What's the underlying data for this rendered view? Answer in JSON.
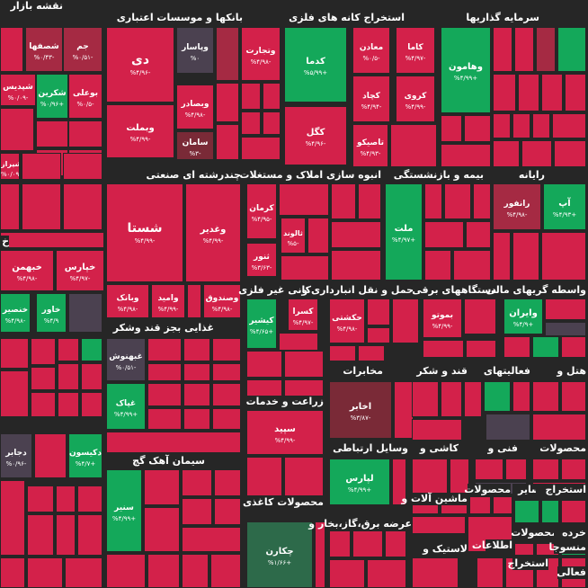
{
  "title": "نقشه بازار",
  "colors": {
    "bg": "#262626",
    "red": "#d3214a",
    "darkred": "#a52a43",
    "deepred": "#7a2a37",
    "green": "#14a85a",
    "darkgreen": "#2d6a4a",
    "gray": "#4b4150"
  },
  "sectors": [
    "بانکها و موسسات اعتباری",
    "استخراج کانه های فلزی",
    "سرمایه گذاریها",
    "چندرشته ای صنعتی",
    "انبوه سازی املاک و مستغلات",
    "بیمه و بازنشستگی",
    "رایانه",
    "غذایی بجز قند وشکر",
    "کانی غیر فلزی",
    "حمل و نقل انبارداری و",
    "دستگاههای برقی",
    "واسطه گریهای مالی",
    "مخابرات",
    "قند و شکر",
    "فعالیتهای",
    "هتل و",
    "زراعت و خدمات",
    "وسایل ارتباطی",
    "کاشی و",
    "فنی و",
    "محصولات",
    "سیمان آهک گچ",
    "محصولات کاغذی",
    "ماشین آلات و",
    "محصولات",
    "سایر",
    "استخراج",
    "عرضه برق،گاز،بخار و",
    "اطلاعات",
    "لاستیک و",
    "محصولات",
    "خرده",
    "استخراج",
    "منسوجا",
    "فعالی",
    "خ"
  ],
  "symbols": [
    {
      "name": "جم",
      "pct": "%۰/۵۱-"
    },
    {
      "name": "شصفها",
      "pct": "%۰/۴۳-"
    },
    {
      "name": "شکرین",
      "pct": "%۰/۹۶+"
    },
    {
      "name": "شپدیس",
      "pct": "%۰/۰۹-"
    },
    {
      "name": "بوعلی",
      "pct": "%۰/۵-"
    },
    {
      "name": "شیراز",
      "pct": "%۰/۰۹-"
    },
    {
      "name": "دی",
      "pct": "%۴/۹۶-"
    },
    {
      "name": "وپاسار",
      "pct": "%۰"
    },
    {
      "name": "وتجارت",
      "pct": "%۴/۹۸-"
    },
    {
      "name": "وبملت",
      "pct": "%۴/۹۹-"
    },
    {
      "name": "وبصادر",
      "pct": "%۴/۹۸-"
    },
    {
      "name": "سامان",
      "pct": "%۳-"
    },
    {
      "name": "معادن",
      "pct": "%۰/۵-"
    },
    {
      "name": "کاما",
      "pct": "%۴/۹۷-"
    },
    {
      "name": "کدما",
      "pct": "%۵/۹۹+"
    },
    {
      "name": "کروی",
      "pct": "%۴/۹۹-"
    },
    {
      "name": "کچاد",
      "pct": "%۴/۹۴-"
    },
    {
      "name": "کگل",
      "pct": "%۴/۹۶-"
    },
    {
      "name": "تاصیکو",
      "pct": "%۴/۹۳-"
    },
    {
      "name": "وهامون",
      "pct": "%۴/۹۹+"
    },
    {
      "name": "شستا",
      "pct": "%۴/۹۹-"
    },
    {
      "name": "وغدیر",
      "pct": "%۴/۹۹-"
    },
    {
      "name": "وبانک",
      "pct": "%۴/۹۸-"
    },
    {
      "name": "وامید",
      "pct": "%۴/۹۹-"
    },
    {
      "name": "وصندوق",
      "pct": "%۴/۹۸-"
    },
    {
      "name": "کرمان",
      "pct": "%۴/۹۵-"
    },
    {
      "name": "ثالوند",
      "pct": "%۵-"
    },
    {
      "name": "ثنور",
      "pct": "%۳/۶۳-"
    },
    {
      "name": "ملت",
      "pct": "%۴/۹۷+"
    },
    {
      "name": "رانفور",
      "pct": "%۴/۹۸-"
    },
    {
      "name": "آپ",
      "pct": "%۴/۹۳+"
    },
    {
      "name": "خپارس",
      "pct": "%۴/۹۷-"
    },
    {
      "name": "خبهمن",
      "pct": "%۴/۹۸-"
    },
    {
      "name": "خنصیر",
      "pct": "%۴/۹۸-"
    },
    {
      "name": "خاور",
      "pct": "%۴/۹"
    },
    {
      "name": "کیشیر",
      "pct": "%۴/۶۵+"
    },
    {
      "name": "کسرا",
      "pct": "%۴/۹۷-"
    },
    {
      "name": "حکشتی",
      "pct": "%۴/۹۸-"
    },
    {
      "name": "بموتو",
      "pct": "%۴/۹۹-"
    },
    {
      "name": "وایران",
      "pct": "%۴/۹+"
    },
    {
      "name": "غبهنوش",
      "pct": "%۰/۵۱-"
    },
    {
      "name": "غپاک",
      "pct": "%۴/۹۹+"
    },
    {
      "name": "اخابر",
      "pct": "%۳/۸۷-"
    },
    {
      "name": "سپید",
      "pct": "%۴/۹۹-"
    },
    {
      "name": "دجابر",
      "pct": "%۰/۹۶-"
    },
    {
      "name": "دکیسون",
      "pct": "%۴/۷+"
    },
    {
      "name": "لپارس",
      "pct": "%۴/۹۹+"
    },
    {
      "name": "سنیر",
      "pct": "%۴/۹۹+"
    },
    {
      "name": "چکارن",
      "pct": "%۱/۶۶+"
    }
  ]
}
